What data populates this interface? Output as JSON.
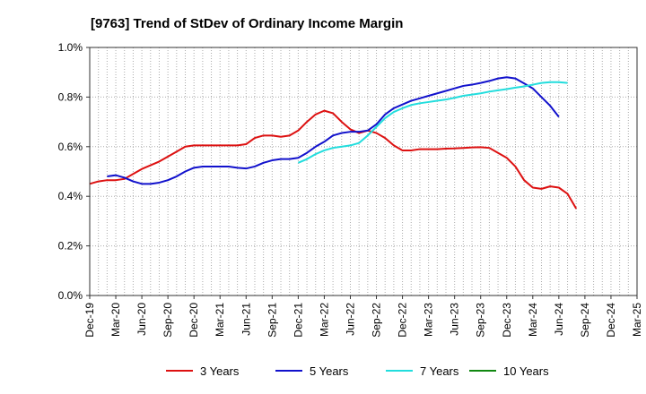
{
  "chart_data": {
    "type": "line",
    "title": "[9763]  Trend of StDev of Ordinary Income Margin",
    "xlabel": "",
    "ylabel": "",
    "x_tick_labels": [
      "Dec-19",
      "Mar-20",
      "Jun-20",
      "Sep-20",
      "Dec-20",
      "Mar-21",
      "Jun-21",
      "Sep-21",
      "Dec-21",
      "Mar-22",
      "Jun-22",
      "Sep-22",
      "Dec-22",
      "Mar-23",
      "Jun-23",
      "Sep-23",
      "Dec-23",
      "Mar-24",
      "Jun-24",
      "Sep-24",
      "Dec-24",
      "Mar-25"
    ],
    "y_tick_labels": [
      "0.0%",
      "0.2%",
      "0.4%",
      "0.6%",
      "0.8%",
      "1.0%"
    ],
    "ylim": [
      0,
      1.0
    ],
    "y_unit": "%",
    "grid": true,
    "legend_position": "bottom",
    "series": [
      {
        "name": "3 Years",
        "color": "#dd1111",
        "start_index": 0,
        "values": [
          0.45,
          0.46,
          0.465,
          0.465,
          0.47,
          0.49,
          0.51,
          0.525,
          0.54,
          0.56,
          0.58,
          0.6,
          0.605,
          0.605,
          0.605,
          0.605,
          0.605,
          0.605,
          0.61,
          0.635,
          0.645,
          0.645,
          0.64,
          0.645,
          0.665,
          0.7,
          0.73,
          0.745,
          0.735,
          0.7,
          0.67,
          0.655,
          0.665,
          0.655,
          0.635,
          0.605,
          0.585,
          0.585,
          0.59,
          0.59,
          0.59,
          0.592,
          0.593,
          0.595,
          0.597,
          0.598,
          0.595,
          0.575,
          0.555,
          0.52,
          0.465,
          0.435,
          0.43,
          0.44,
          0.435,
          0.41,
          0.35
        ]
      },
      {
        "name": "5 Years",
        "color": "#1111cc",
        "start_index": 2,
        "values": [
          0.48,
          0.485,
          0.475,
          0.46,
          0.45,
          0.45,
          0.455,
          0.465,
          0.48,
          0.5,
          0.515,
          0.52,
          0.52,
          0.52,
          0.52,
          0.515,
          0.512,
          0.52,
          0.535,
          0.545,
          0.55,
          0.55,
          0.555,
          0.575,
          0.6,
          0.62,
          0.645,
          0.655,
          0.66,
          0.66,
          0.665,
          0.69,
          0.73,
          0.755,
          0.77,
          0.785,
          0.795,
          0.805,
          0.815,
          0.825,
          0.835,
          0.845,
          0.85,
          0.857,
          0.865,
          0.875,
          0.88,
          0.875,
          0.855,
          0.835,
          0.8,
          0.765,
          0.72
        ]
      },
      {
        "name": "7 Years",
        "color": "#22dddd",
        "start_index": 24,
        "values": [
          0.535,
          0.55,
          0.57,
          0.585,
          0.595,
          0.6,
          0.605,
          0.615,
          0.645,
          0.68,
          0.715,
          0.74,
          0.755,
          0.768,
          0.775,
          0.78,
          0.785,
          0.79,
          0.797,
          0.805,
          0.81,
          0.815,
          0.822,
          0.827,
          0.832,
          0.838,
          0.843,
          0.85,
          0.857,
          0.86,
          0.86,
          0.857
        ]
      },
      {
        "name": "10 Years",
        "color": "#118811",
        "start_index": 0,
        "values": []
      }
    ]
  }
}
